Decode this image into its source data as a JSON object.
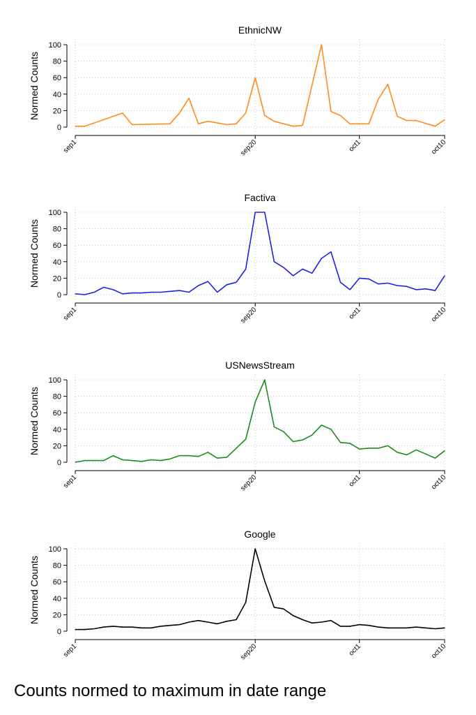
{
  "caption": "Counts normed to maximum in date range",
  "chart_data": [
    {
      "type": "line",
      "title": "EthnicNW",
      "color": "#ff8c1a",
      "ylabel": "Normed Counts",
      "xlabel": "",
      "ylim": [
        0,
        100
      ],
      "yticks": [
        0,
        20,
        40,
        60,
        80,
        100
      ],
      "xticks": [
        {
          "date": "2020-09-01",
          "label": "sep1"
        },
        {
          "date": "2020-09-20",
          "label": "sep20"
        },
        {
          "date": "2020-10-01",
          "label": "oct1"
        },
        {
          "date": "2020-10-10",
          "label": "oct10"
        }
      ],
      "grid": true,
      "series": [
        {
          "x": [
            "2020-09-01",
            "2020-09-02",
            "2020-09-06",
            "2020-09-07",
            "2020-09-11",
            "2020-09-12",
            "2020-09-13",
            "2020-09-14",
            "2020-09-15",
            "2020-09-16",
            "2020-09-17",
            "2020-09-18",
            "2020-09-19",
            "2020-09-20",
            "2020-09-21",
            "2020-09-22",
            "2020-09-23",
            "2020-09-24",
            "2020-09-25",
            "2020-09-27",
            "2020-09-28",
            "2020-09-29",
            "2020-09-30",
            "2020-10-01",
            "2020-10-02",
            "2020-10-03",
            "2020-10-04",
            "2020-10-05",
            "2020-10-06",
            "2020-10-07",
            "2020-10-09",
            "2020-10-10"
          ],
          "values": [
            1,
            1,
            17,
            3,
            4,
            17,
            35,
            4,
            7,
            5,
            3,
            4,
            17,
            60,
            14,
            7,
            4,
            1,
            2,
            100,
            19,
            14,
            4,
            4,
            4,
            34,
            52,
            13,
            8,
            8,
            1,
            9
          ]
        }
      ]
    },
    {
      "type": "line",
      "title": "Factiva",
      "color": "#1f1fe6",
      "ylabel": "Normed Counts",
      "xlabel": "",
      "ylim": [
        0,
        100
      ],
      "yticks": [
        0,
        20,
        40,
        60,
        80,
        100
      ],
      "xticks": [
        {
          "date": "2020-09-01",
          "label": "sep1"
        },
        {
          "date": "2020-09-20",
          "label": "sep20"
        },
        {
          "date": "2020-10-01",
          "label": "oct1"
        },
        {
          "date": "2020-10-10",
          "label": "oct10"
        }
      ],
      "grid": true,
      "series": [
        {
          "x": [
            "2020-09-01",
            "2020-09-02",
            "2020-09-03",
            "2020-09-04",
            "2020-09-05",
            "2020-09-06",
            "2020-09-07",
            "2020-09-08",
            "2020-09-09",
            "2020-09-10",
            "2020-09-11",
            "2020-09-12",
            "2020-09-13",
            "2020-09-14",
            "2020-09-15",
            "2020-09-16",
            "2020-09-17",
            "2020-09-18",
            "2020-09-19",
            "2020-09-20",
            "2020-09-21",
            "2020-09-22",
            "2020-09-23",
            "2020-09-24",
            "2020-09-25",
            "2020-09-26",
            "2020-09-27",
            "2020-09-28",
            "2020-09-29",
            "2020-09-30",
            "2020-10-01",
            "2020-10-02",
            "2020-10-03",
            "2020-10-04",
            "2020-10-05",
            "2020-10-06",
            "2020-10-07",
            "2020-10-08",
            "2020-10-09",
            "2020-10-10"
          ],
          "values": [
            1,
            0,
            3,
            9,
            6,
            1,
            2,
            2,
            3,
            3,
            4,
            5,
            3,
            11,
            16,
            3,
            12,
            15,
            31,
            100,
            100,
            40,
            33,
            23,
            31,
            26,
            44,
            52,
            15,
            6,
            20,
            19,
            13,
            14,
            11,
            10,
            6,
            7,
            5,
            23
          ]
        }
      ]
    },
    {
      "type": "line",
      "title": "USNewsStream",
      "color": "#1a8c1a",
      "ylabel": "Normed Counts",
      "xlabel": "",
      "ylim": [
        0,
        100
      ],
      "yticks": [
        0,
        20,
        40,
        60,
        80,
        100
      ],
      "xticks": [
        {
          "date": "2020-09-01",
          "label": "sep1"
        },
        {
          "date": "2020-09-20",
          "label": "sep20"
        },
        {
          "date": "2020-10-01",
          "label": "oct1"
        },
        {
          "date": "2020-10-10",
          "label": "oct10"
        }
      ],
      "grid": true,
      "series": [
        {
          "x": [
            "2020-09-01",
            "2020-09-02",
            "2020-09-03",
            "2020-09-04",
            "2020-09-05",
            "2020-09-06",
            "2020-09-07",
            "2020-09-08",
            "2020-09-09",
            "2020-09-10",
            "2020-09-11",
            "2020-09-12",
            "2020-09-13",
            "2020-09-14",
            "2020-09-15",
            "2020-09-16",
            "2020-09-17",
            "2020-09-18",
            "2020-09-19",
            "2020-09-20",
            "2020-09-21",
            "2020-09-22",
            "2020-09-23",
            "2020-09-24",
            "2020-09-25",
            "2020-09-26",
            "2020-09-27",
            "2020-09-28",
            "2020-09-29",
            "2020-09-30",
            "2020-10-01",
            "2020-10-02",
            "2020-10-03",
            "2020-10-04",
            "2020-10-05",
            "2020-10-06",
            "2020-10-07",
            "2020-10-08",
            "2020-10-09",
            "2020-10-10"
          ],
          "values": [
            0,
            2,
            2,
            2,
            8,
            3,
            2,
            1,
            3,
            2,
            4,
            8,
            8,
            7,
            12,
            5,
            6,
            17,
            28,
            73,
            100,
            43,
            37,
            25,
            27,
            33,
            45,
            40,
            24,
            23,
            16,
            17,
            17,
            20,
            12,
            9,
            15,
            10,
            5,
            14
          ]
        }
      ]
    },
    {
      "type": "line",
      "title": "Google",
      "color": "#000000",
      "ylabel": "Normed Counts",
      "xlabel": "",
      "ylim": [
        0,
        100
      ],
      "yticks": [
        0,
        20,
        40,
        60,
        80,
        100
      ],
      "xticks": [
        {
          "date": "2020-09-01",
          "label": "sep1"
        },
        {
          "date": "2020-09-20",
          "label": "sep20"
        },
        {
          "date": "2020-10-01",
          "label": "oct1"
        },
        {
          "date": "2020-10-10",
          "label": "oct10"
        }
      ],
      "grid": true,
      "series": [
        {
          "x": [
            "2020-09-01",
            "2020-09-02",
            "2020-09-03",
            "2020-09-04",
            "2020-09-05",
            "2020-09-06",
            "2020-09-07",
            "2020-09-08",
            "2020-09-09",
            "2020-09-10",
            "2020-09-11",
            "2020-09-12",
            "2020-09-13",
            "2020-09-14",
            "2020-09-15",
            "2020-09-16",
            "2020-09-17",
            "2020-09-18",
            "2020-09-19",
            "2020-09-20",
            "2020-09-21",
            "2020-09-22",
            "2020-09-23",
            "2020-09-24",
            "2020-09-25",
            "2020-09-26",
            "2020-09-27",
            "2020-09-28",
            "2020-09-29",
            "2020-09-30",
            "2020-10-01",
            "2020-10-02",
            "2020-10-03",
            "2020-10-04",
            "2020-10-05",
            "2020-10-06",
            "2020-10-07",
            "2020-10-08",
            "2020-10-09",
            "2020-10-10"
          ],
          "values": [
            2,
            2,
            3,
            5,
            6,
            5,
            5,
            4,
            4,
            6,
            7,
            8,
            11,
            13,
            11,
            9,
            12,
            14,
            35,
            100,
            61,
            29,
            27,
            19,
            14,
            10,
            11,
            13,
            6,
            6,
            8,
            7,
            5,
            4,
            4,
            4,
            5,
            4,
            3,
            4
          ]
        }
      ]
    }
  ]
}
